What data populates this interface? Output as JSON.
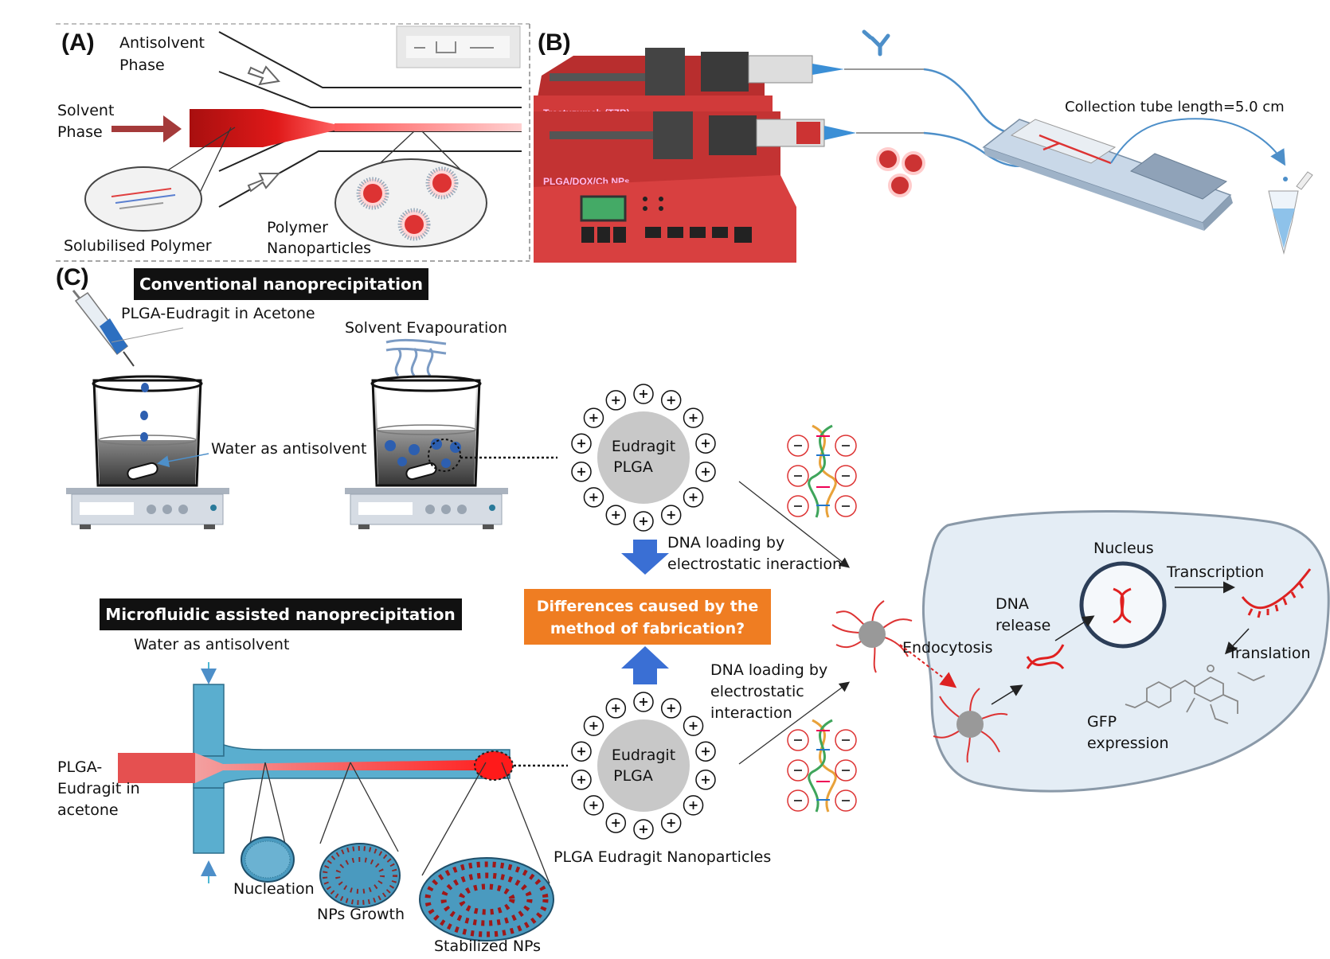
{
  "panel_a": {
    "label": "(A)",
    "antisolvent_1": "Antisolvent",
    "antisolvent_2": "Phase",
    "solvent_1": "Solvent",
    "solvent_2": "Phase",
    "solubilised": "Solubilised Polymer",
    "polymer_1": "Polymer",
    "polymer_2": "Nanoparticles"
  },
  "panel_b": {
    "label": "(B)",
    "pump_1": "Trastuzumab (TZB)",
    "pump_2": "PLGA/DOX/Ch NPs",
    "collection": "Collection tube length=5.0 cm"
  },
  "panel_c": {
    "label": "(C)",
    "conventional_title": "Conventional nanoprecipitation",
    "syringe_label": "PLGA-Eudragit in Acetone",
    "evaporation": "Solvent Evapouration",
    "water_antisolvent_top": "Water as antisolvent",
    "particle_top_1": "Eudragit",
    "particle_top_2": "PLGA",
    "dna_loading_top_1": "DNA loading by",
    "dna_loading_top_2": "electrostatic ineraction",
    "differences_1": "Differences caused by the",
    "differences_2": "method of fabrication?",
    "microfluidic_title": "Microfluidic assisted nanoprecipitation",
    "water_antisolvent_bottom": "Water as antisolvent",
    "inlet_1": "PLGA-",
    "inlet_2": "Eudragit in",
    "inlet_3": "acetone",
    "nucleation": "Nucleation",
    "nps_growth": "NPs Growth",
    "stabilized": "Stabilized NPs",
    "particle_bottom_1": "Eudragit",
    "particle_bottom_2": "PLGA",
    "dna_loading_bottom_1": "DNA loading by",
    "dna_loading_bottom_2": "electrostatic",
    "dna_loading_bottom_3": "interaction",
    "nanoparticles_caption": "PLGA Eudragit Nanoparticles",
    "cell": {
      "nucleus": "Nucleus",
      "transcription": "Transcription",
      "dna_release_1": "DNA",
      "dna_release_2": "release",
      "endocytosis": "Endocytosis",
      "translation": "Translation",
      "gfp_1": "GFP",
      "gfp_2": "expression"
    }
  },
  "colors": {
    "pump_red": "#d13a3a",
    "channel_blue": "#5aaecf",
    "orange_box": "#ef7d22",
    "arrow_blue": "#3a6fd4",
    "cell_fill": "#e4edf5"
  }
}
